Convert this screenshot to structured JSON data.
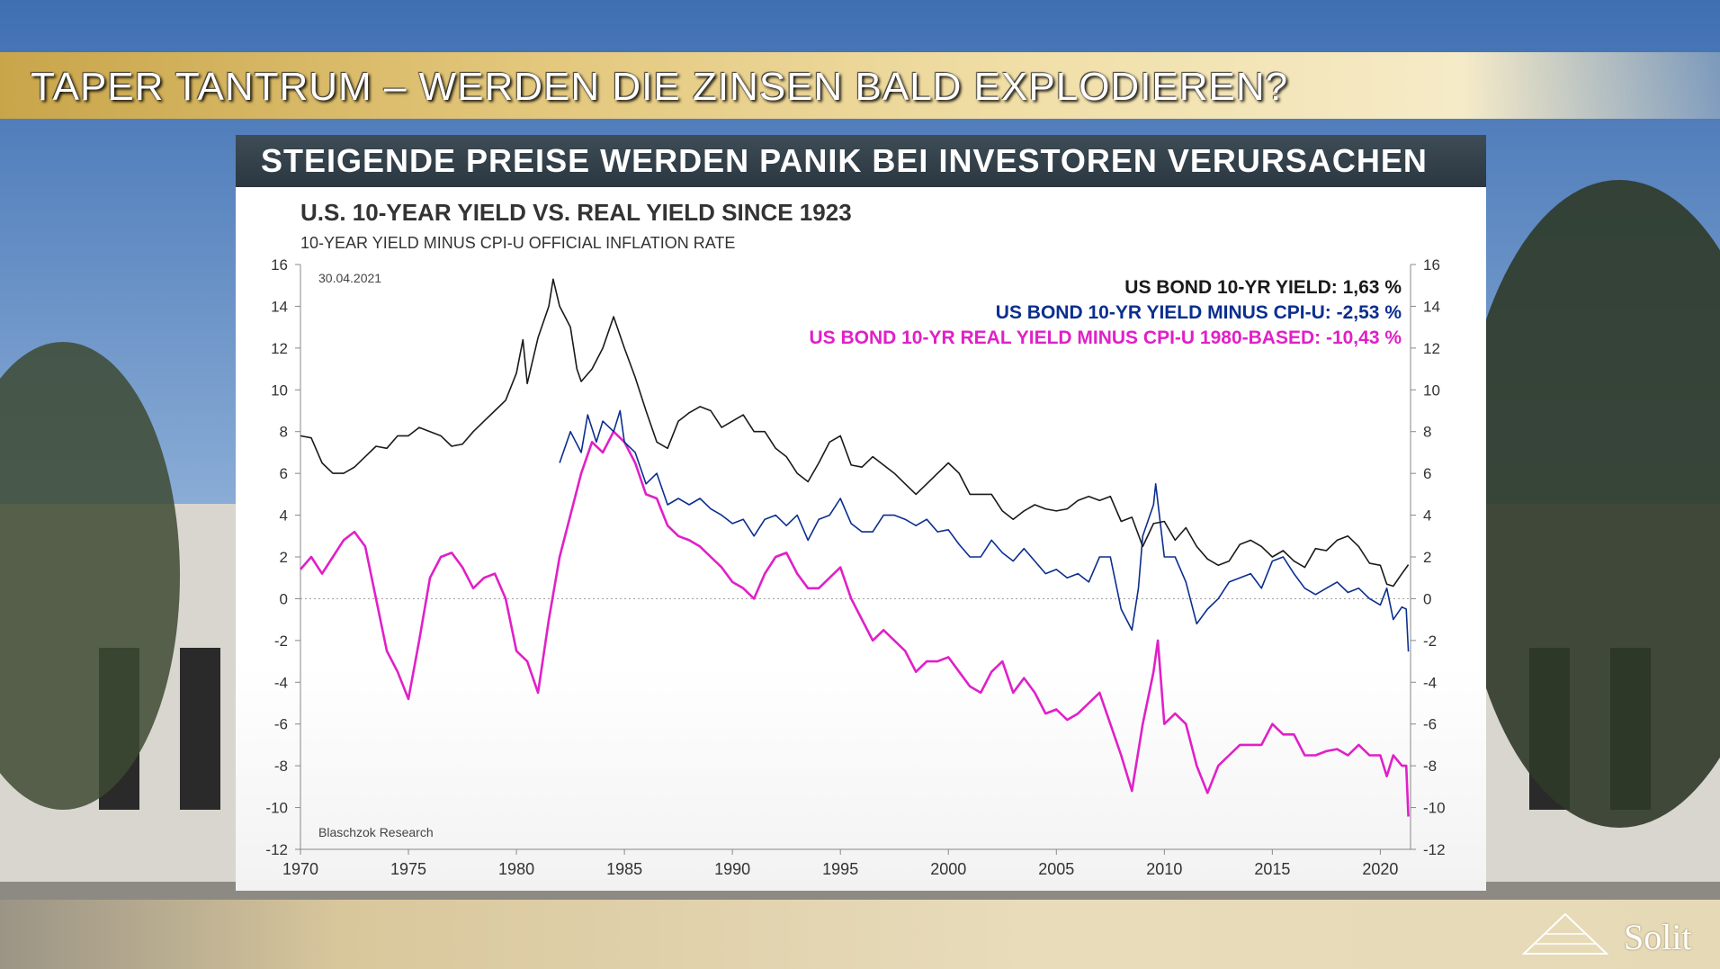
{
  "header": {
    "title": "TAPER TANTRUM – WERDEN  DIE  ZINSEN  BALD  EXPLODIEREN?",
    "subtitle": "STEIGENDE  PREISE  WERDEN  PANIK  BEI  INVESTOREN  VERURSACHEN"
  },
  "branding": {
    "logo_text": "Solit",
    "logo_icon": "pyramid-logo-icon"
  },
  "colors": {
    "black_series": "#1a1a1a",
    "blue_series": "#0b2e8f",
    "magenta_series": "#e020c8",
    "title_band": "#d4b464",
    "panel_header": "#34414a"
  },
  "chart_data": {
    "type": "line",
    "title": "U.S. 10-YEAR YIELD VS. REAL YIELD SINCE 1923",
    "subtitle": "10-YEAR YIELD MINUS CPI-U OFFICIAL INFLATION RATE",
    "date_label": "30.04.2021",
    "source": "Blaschzok Research",
    "xlim": [
      1970,
      2021.4
    ],
    "ylim": [
      -12,
      16
    ],
    "x_ticks": [
      1970,
      1975,
      1980,
      1985,
      1990,
      1995,
      2000,
      2005,
      2010,
      2015,
      2020
    ],
    "y_ticks": [
      16,
      14,
      12,
      10,
      8,
      6,
      4,
      2,
      0,
      -2,
      -4,
      -6,
      -8,
      -10,
      -12
    ],
    "zero_line": true,
    "legend_position": "top-right",
    "series": [
      {
        "name": "US BOND 10-YR YIELD: 1,63 %",
        "color": "#1a1a1a",
        "points": [
          [
            1970,
            7.8
          ],
          [
            1970.5,
            7.7
          ],
          [
            1971,
            6.5
          ],
          [
            1971.5,
            6.0
          ],
          [
            1972,
            6.0
          ],
          [
            1972.5,
            6.3
          ],
          [
            1973,
            6.8
          ],
          [
            1973.5,
            7.3
          ],
          [
            1974,
            7.2
          ],
          [
            1974.5,
            7.8
          ],
          [
            1975,
            7.8
          ],
          [
            1975.5,
            8.2
          ],
          [
            1976,
            8.0
          ],
          [
            1976.5,
            7.8
          ],
          [
            1977,
            7.3
          ],
          [
            1977.5,
            7.4
          ],
          [
            1978,
            8.0
          ],
          [
            1978.5,
            8.5
          ],
          [
            1979,
            9.0
          ],
          [
            1979.5,
            9.5
          ],
          [
            1980,
            10.8
          ],
          [
            1980.3,
            12.4
          ],
          [
            1980.5,
            10.3
          ],
          [
            1981,
            12.5
          ],
          [
            1981.5,
            14.0
          ],
          [
            1981.7,
            15.3
          ],
          [
            1982,
            14.0
          ],
          [
            1982.5,
            13.0
          ],
          [
            1982.8,
            11.0
          ],
          [
            1983,
            10.4
          ],
          [
            1983.5,
            11.0
          ],
          [
            1984,
            12.0
          ],
          [
            1984.5,
            13.5
          ],
          [
            1985,
            12.0
          ],
          [
            1985.5,
            10.6
          ],
          [
            1986,
            9.0
          ],
          [
            1986.5,
            7.5
          ],
          [
            1987,
            7.2
          ],
          [
            1987.5,
            8.5
          ],
          [
            1988,
            8.9
          ],
          [
            1988.5,
            9.2
          ],
          [
            1989,
            9.0
          ],
          [
            1989.5,
            8.2
          ],
          [
            1990,
            8.5
          ],
          [
            1990.5,
            8.8
          ],
          [
            1991,
            8.0
          ],
          [
            1991.5,
            8.0
          ],
          [
            1992,
            7.2
          ],
          [
            1992.5,
            6.8
          ],
          [
            1993,
            6.0
          ],
          [
            1993.5,
            5.6
          ],
          [
            1994,
            6.5
          ],
          [
            1994.5,
            7.5
          ],
          [
            1995,
            7.8
          ],
          [
            1995.5,
            6.4
          ],
          [
            1996,
            6.3
          ],
          [
            1996.5,
            6.8
          ],
          [
            1997,
            6.4
          ],
          [
            1997.5,
            6.0
          ],
          [
            1998,
            5.5
          ],
          [
            1998.5,
            5.0
          ],
          [
            1999,
            5.5
          ],
          [
            1999.5,
            6.0
          ],
          [
            2000,
            6.5
          ],
          [
            2000.5,
            6.0
          ],
          [
            2001,
            5.0
          ],
          [
            2001.5,
            5.0
          ],
          [
            2002,
            5.0
          ],
          [
            2002.5,
            4.2
          ],
          [
            2003,
            3.8
          ],
          [
            2003.5,
            4.2
          ],
          [
            2004,
            4.5
          ],
          [
            2004.5,
            4.3
          ],
          [
            2005,
            4.2
          ],
          [
            2005.5,
            4.3
          ],
          [
            2006,
            4.7
          ],
          [
            2006.5,
            4.9
          ],
          [
            2007,
            4.7
          ],
          [
            2007.5,
            4.9
          ],
          [
            2008,
            3.7
          ],
          [
            2008.5,
            3.9
          ],
          [
            2009,
            2.5
          ],
          [
            2009.5,
            3.6
          ],
          [
            2010,
            3.7
          ],
          [
            2010.5,
            2.8
          ],
          [
            2011,
            3.4
          ],
          [
            2011.5,
            2.5
          ],
          [
            2012,
            1.9
          ],
          [
            2012.5,
            1.6
          ],
          [
            2013,
            1.8
          ],
          [
            2013.5,
            2.6
          ],
          [
            2014,
            2.8
          ],
          [
            2014.5,
            2.5
          ],
          [
            2015,
            2.0
          ],
          [
            2015.5,
            2.3
          ],
          [
            2016,
            1.8
          ],
          [
            2016.5,
            1.5
          ],
          [
            2017,
            2.4
          ],
          [
            2017.5,
            2.3
          ],
          [
            2018,
            2.8
          ],
          [
            2018.5,
            3.0
          ],
          [
            2019,
            2.5
          ],
          [
            2019.5,
            1.7
          ],
          [
            2020,
            1.6
          ],
          [
            2020.3,
            0.7
          ],
          [
            2020.6,
            0.6
          ],
          [
            2021,
            1.2
          ],
          [
            2021.3,
            1.63
          ]
        ]
      },
      {
        "name": "US BOND 10-YR YIELD MINUS CPI-U: -2,53 %",
        "color": "#0b2e8f",
        "points": [
          [
            1982,
            6.5
          ],
          [
            1982.5,
            8.0
          ],
          [
            1983,
            7.0
          ],
          [
            1983.3,
            8.8
          ],
          [
            1983.7,
            7.5
          ],
          [
            1984,
            8.5
          ],
          [
            1984.5,
            8.0
          ],
          [
            1984.8,
            9.0
          ],
          [
            1985,
            7.5
          ],
          [
            1985.5,
            7.0
          ],
          [
            1986,
            5.5
          ],
          [
            1986.5,
            6.0
          ],
          [
            1987,
            4.5
          ],
          [
            1987.5,
            4.8
          ],
          [
            1988,
            4.5
          ],
          [
            1988.5,
            4.8
          ],
          [
            1989,
            4.3
          ],
          [
            1989.5,
            4.0
          ],
          [
            1990,
            3.6
          ],
          [
            1990.5,
            3.8
          ],
          [
            1991,
            3.0
          ],
          [
            1991.5,
            3.8
          ],
          [
            1992,
            4.0
          ],
          [
            1992.5,
            3.5
          ],
          [
            1993,
            4.0
          ],
          [
            1993.5,
            2.8
          ],
          [
            1994,
            3.8
          ],
          [
            1994.5,
            4.0
          ],
          [
            1995,
            4.8
          ],
          [
            1995.5,
            3.6
          ],
          [
            1996,
            3.2
          ],
          [
            1996.5,
            3.2
          ],
          [
            1997,
            4.0
          ],
          [
            1997.5,
            4.0
          ],
          [
            1998,
            3.8
          ],
          [
            1998.5,
            3.5
          ],
          [
            1999,
            3.8
          ],
          [
            1999.5,
            3.2
          ],
          [
            2000,
            3.3
          ],
          [
            2000.5,
            2.6
          ],
          [
            2001,
            2.0
          ],
          [
            2001.5,
            2.0
          ],
          [
            2002,
            2.8
          ],
          [
            2002.5,
            2.2
          ],
          [
            2003,
            1.8
          ],
          [
            2003.5,
            2.4
          ],
          [
            2004,
            1.8
          ],
          [
            2004.5,
            1.2
          ],
          [
            2005,
            1.4
          ],
          [
            2005.5,
            1.0
          ],
          [
            2006,
            1.2
          ],
          [
            2006.5,
            0.8
          ],
          [
            2007,
            2.0
          ],
          [
            2007.5,
            2.0
          ],
          [
            2008,
            -0.5
          ],
          [
            2008.5,
            -1.5
          ],
          [
            2008.8,
            0.5
          ],
          [
            2009,
            3.0
          ],
          [
            2009.5,
            4.5
          ],
          [
            2009.6,
            5.5
          ],
          [
            2010,
            2.0
          ],
          [
            2010.5,
            2.0
          ],
          [
            2011,
            0.8
          ],
          [
            2011.5,
            -1.2
          ],
          [
            2012,
            -0.5
          ],
          [
            2012.5,
            0.0
          ],
          [
            2013,
            0.8
          ],
          [
            2013.5,
            1.0
          ],
          [
            2014,
            1.2
          ],
          [
            2014.5,
            0.5
          ],
          [
            2015,
            1.8
          ],
          [
            2015.5,
            2.0
          ],
          [
            2016,
            1.2
          ],
          [
            2016.5,
            0.5
          ],
          [
            2017,
            0.2
          ],
          [
            2017.5,
            0.5
          ],
          [
            2018,
            0.8
          ],
          [
            2018.5,
            0.3
          ],
          [
            2019,
            0.5
          ],
          [
            2019.5,
            0.0
          ],
          [
            2020,
            -0.3
          ],
          [
            2020.3,
            0.5
          ],
          [
            2020.6,
            -1.0
          ],
          [
            2021,
            -0.4
          ],
          [
            2021.2,
            -0.5
          ],
          [
            2021.3,
            -2.53
          ]
        ]
      },
      {
        "name": "US BOND 10-YR REAL YIELD MINUS CPI-U 1980-BASED: -10,43 %",
        "color": "#e020c8",
        "points": [
          [
            1970,
            1.4
          ],
          [
            1970.5,
            2.0
          ],
          [
            1971,
            1.2
          ],
          [
            1971.5,
            2.0
          ],
          [
            1972,
            2.8
          ],
          [
            1972.5,
            3.2
          ],
          [
            1973,
            2.5
          ],
          [
            1973.5,
            0.0
          ],
          [
            1974,
            -2.5
          ],
          [
            1974.5,
            -3.5
          ],
          [
            1975,
            -4.8
          ],
          [
            1975.5,
            -2.0
          ],
          [
            1976,
            1.0
          ],
          [
            1976.5,
            2.0
          ],
          [
            1977,
            2.2
          ],
          [
            1977.5,
            1.5
          ],
          [
            1978,
            0.5
          ],
          [
            1978.5,
            1.0
          ],
          [
            1979,
            1.2
          ],
          [
            1979.5,
            0.0
          ],
          [
            1980,
            -2.5
          ],
          [
            1980.5,
            -3.0
          ],
          [
            1981,
            -4.5
          ],
          [
            1981.5,
            -1.0
          ],
          [
            1982,
            2.0
          ],
          [
            1982.5,
            4.0
          ],
          [
            1983,
            6.0
          ],
          [
            1983.5,
            7.5
          ],
          [
            1984,
            7.0
          ],
          [
            1984.5,
            8.0
          ],
          [
            1985,
            7.5
          ],
          [
            1985.5,
            6.5
          ],
          [
            1986,
            5.0
          ],
          [
            1986.5,
            4.8
          ],
          [
            1987,
            3.5
          ],
          [
            1987.5,
            3.0
          ],
          [
            1988,
            2.8
          ],
          [
            1988.5,
            2.5
          ],
          [
            1989,
            2.0
          ],
          [
            1989.5,
            1.5
          ],
          [
            1990,
            0.8
          ],
          [
            1990.5,
            0.5
          ],
          [
            1991,
            0.0
          ],
          [
            1991.5,
            1.2
          ],
          [
            1992,
            2.0
          ],
          [
            1992.5,
            2.2
          ],
          [
            1993,
            1.2
          ],
          [
            1993.5,
            0.5
          ],
          [
            1994,
            0.5
          ],
          [
            1994.5,
            1.0
          ],
          [
            1995,
            1.5
          ],
          [
            1995.5,
            0.0
          ],
          [
            1996,
            -1.0
          ],
          [
            1996.5,
            -2.0
          ],
          [
            1997,
            -1.5
          ],
          [
            1997.5,
            -2.0
          ],
          [
            1998,
            -2.5
          ],
          [
            1998.5,
            -3.5
          ],
          [
            1999,
            -3.0
          ],
          [
            1999.5,
            -3.0
          ],
          [
            2000,
            -2.8
          ],
          [
            2000.5,
            -3.5
          ],
          [
            2001,
            -4.2
          ],
          [
            2001.5,
            -4.5
          ],
          [
            2002,
            -3.5
          ],
          [
            2002.5,
            -3.0
          ],
          [
            2003,
            -4.5
          ],
          [
            2003.5,
            -3.8
          ],
          [
            2004,
            -4.5
          ],
          [
            2004.5,
            -5.5
          ],
          [
            2005,
            -5.3
          ],
          [
            2005.5,
            -5.8
          ],
          [
            2006,
            -5.5
          ],
          [
            2006.5,
            -5.0
          ],
          [
            2007,
            -4.5
          ],
          [
            2007.5,
            -6.0
          ],
          [
            2008,
            -7.5
          ],
          [
            2008.5,
            -9.2
          ],
          [
            2009,
            -6.0
          ],
          [
            2009.5,
            -3.5
          ],
          [
            2009.7,
            -2.0
          ],
          [
            2010,
            -6.0
          ],
          [
            2010.5,
            -5.5
          ],
          [
            2011,
            -6.0
          ],
          [
            2011.5,
            -8.0
          ],
          [
            2012,
            -9.3
          ],
          [
            2012.5,
            -8.0
          ],
          [
            2013,
            -7.5
          ],
          [
            2013.5,
            -7.0
          ],
          [
            2014,
            -7.0
          ],
          [
            2014.5,
            -7.0
          ],
          [
            2015,
            -6.0
          ],
          [
            2015.5,
            -6.5
          ],
          [
            2016,
            -6.5
          ],
          [
            2016.5,
            -7.5
          ],
          [
            2017,
            -7.5
          ],
          [
            2017.5,
            -7.3
          ],
          [
            2018,
            -7.2
          ],
          [
            2018.5,
            -7.5
          ],
          [
            2019,
            -7.0
          ],
          [
            2019.5,
            -7.5
          ],
          [
            2020,
            -7.5
          ],
          [
            2020.3,
            -8.5
          ],
          [
            2020.6,
            -7.5
          ],
          [
            2021,
            -8.0
          ],
          [
            2021.2,
            -8.0
          ],
          [
            2021.3,
            -10.43
          ]
        ]
      }
    ]
  }
}
